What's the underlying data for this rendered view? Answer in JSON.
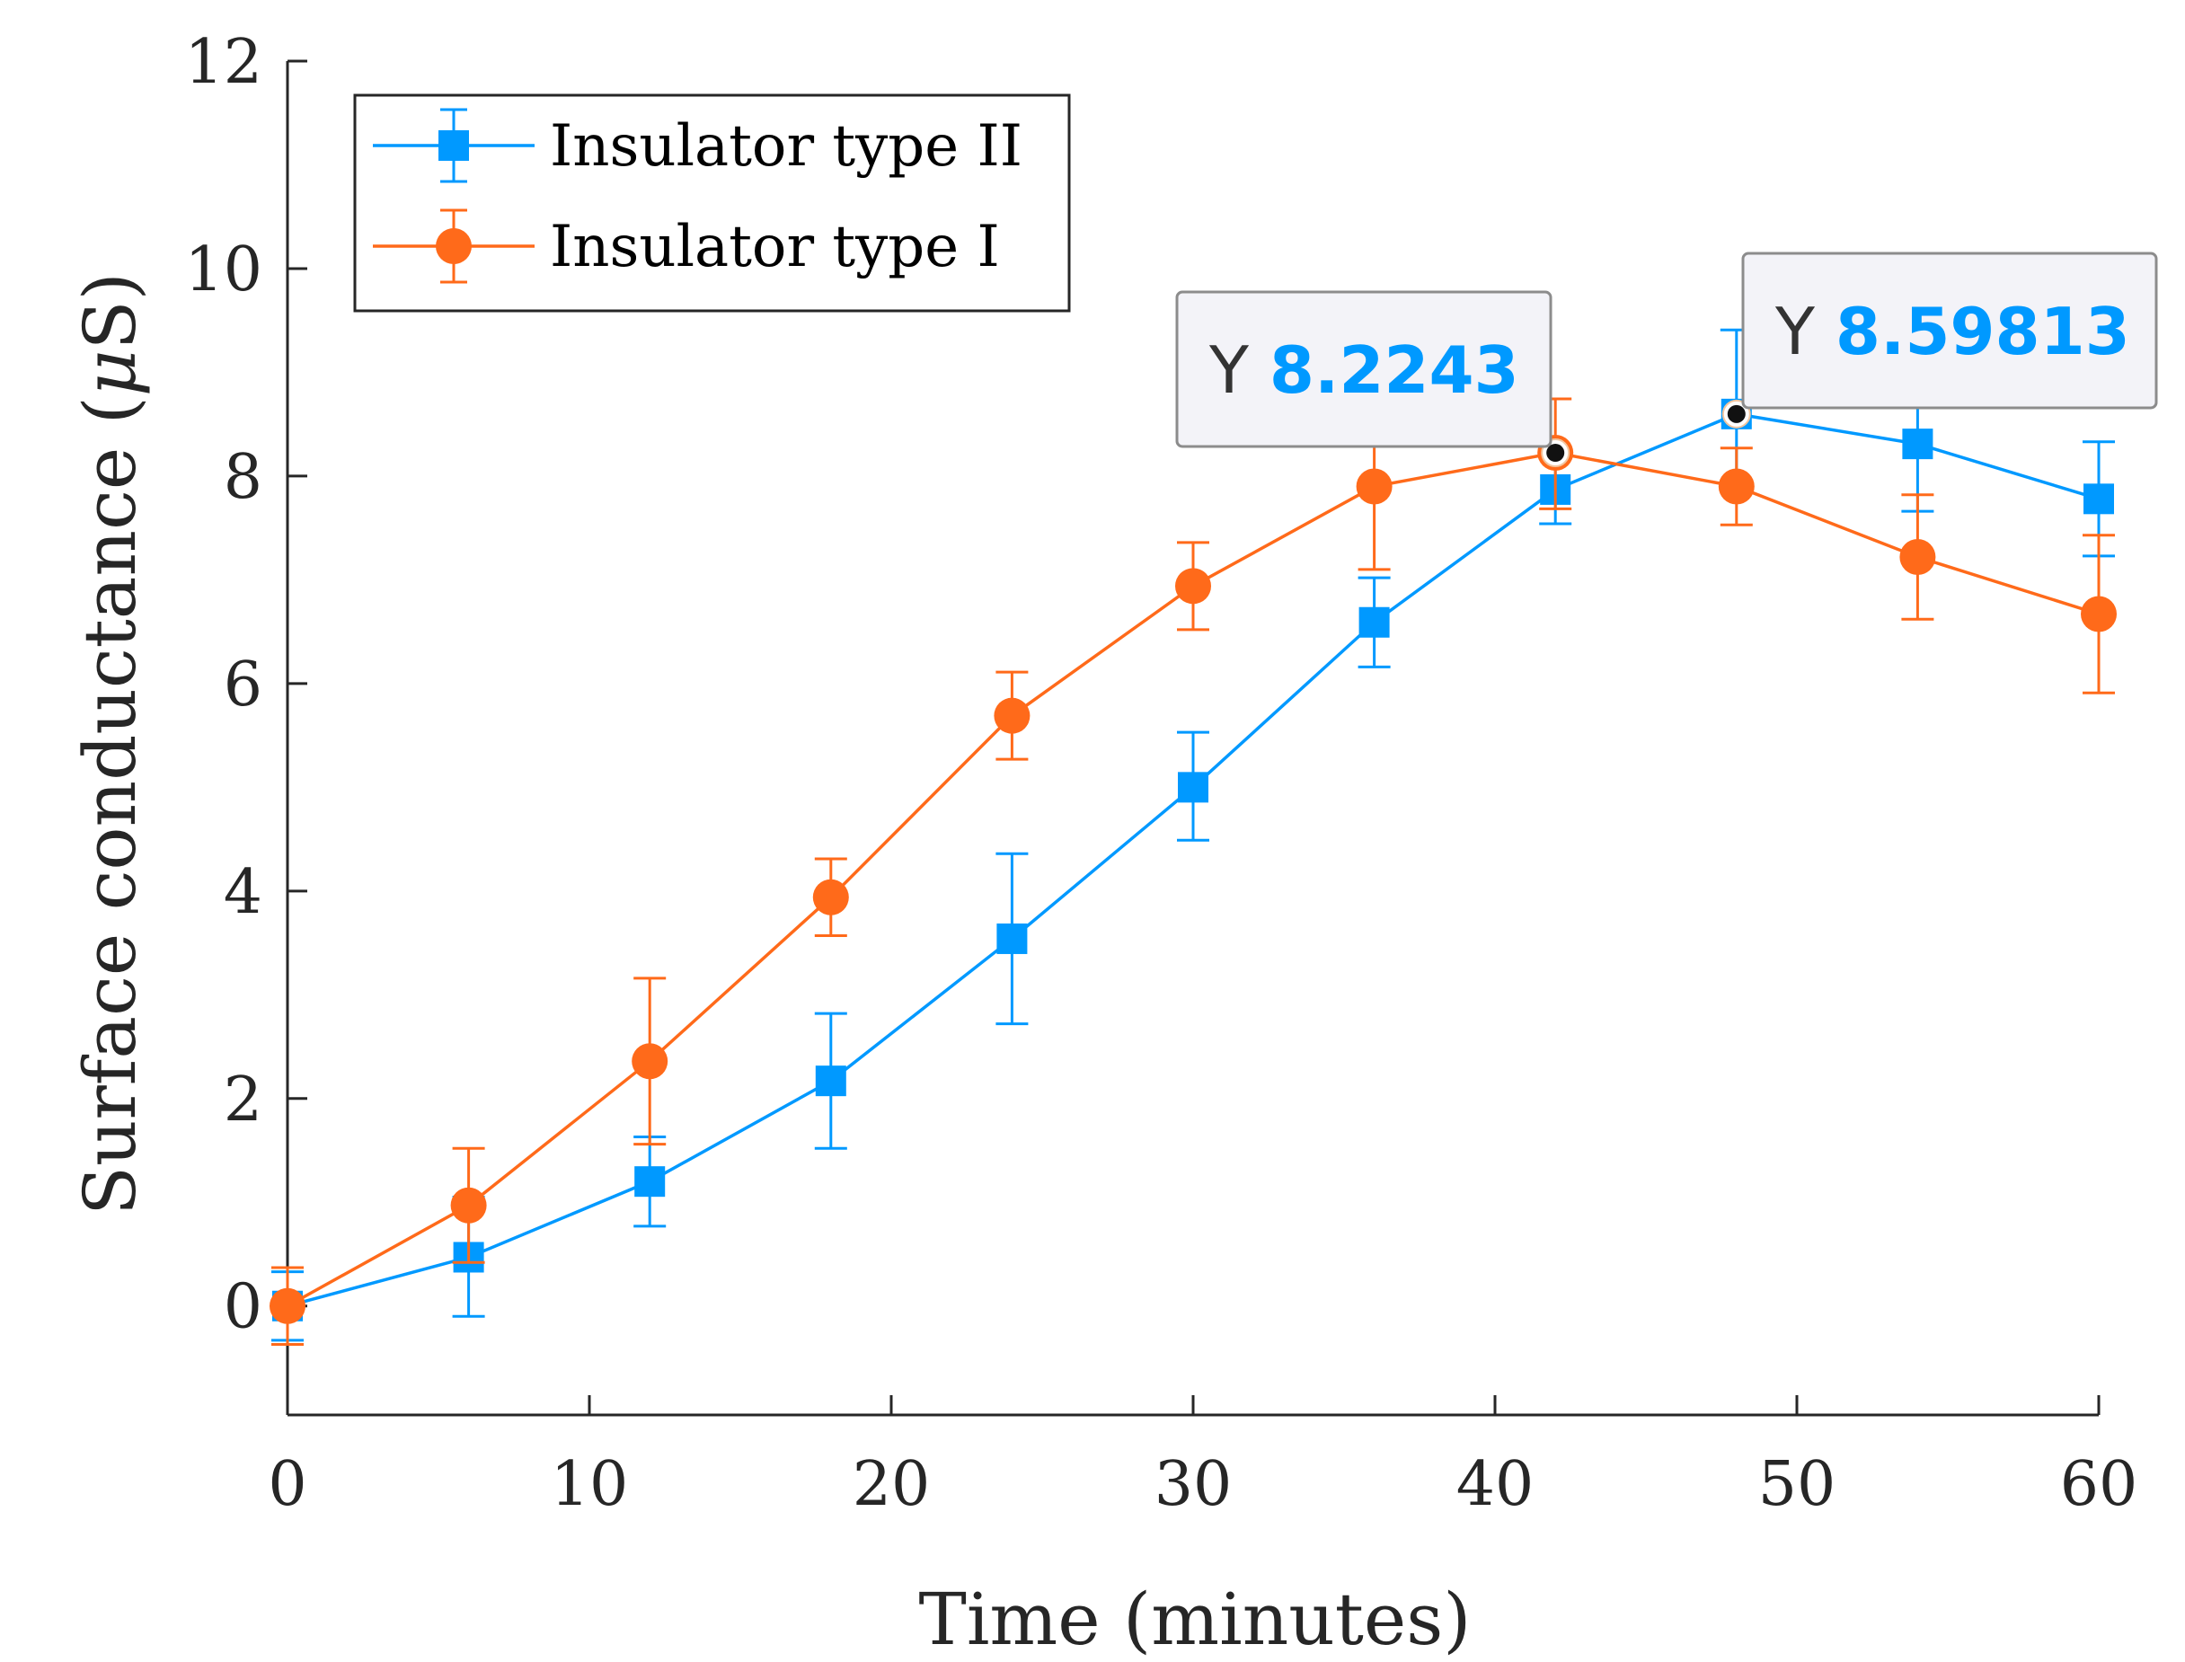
{
  "chart_data": {
    "type": "line",
    "title": "",
    "xlabel": "Time (minutes)",
    "ylabel_text": "Surface conductance (",
    "ylabel_symbol": "μ",
    "ylabel_unit": "S)",
    "xlim": [
      0,
      60
    ],
    "ylim": [
      -1.05,
      12
    ],
    "xticks": [
      0,
      10,
      20,
      30,
      40,
      50,
      60
    ],
    "yticks": [
      0,
      2,
      4,
      6,
      8,
      10,
      12
    ],
    "grid": false,
    "legend_position": "top-left",
    "x": [
      0,
      6,
      12,
      18,
      24,
      30,
      36,
      42,
      48,
      54,
      60
    ],
    "series": [
      {
        "name": "Insulator type II",
        "color": "#0099ff",
        "marker": "square",
        "values": [
          0.0,
          0.47,
          1.2,
          2.17,
          3.54,
          5.0,
          6.59,
          7.87,
          8.59813,
          8.31,
          7.78
        ],
        "err_low": [
          0.33,
          0.57,
          0.43,
          0.65,
          0.82,
          0.51,
          0.43,
          0.33,
          0.66,
          0.65,
          0.55
        ],
        "err_high": [
          0.33,
          0.58,
          0.43,
          0.65,
          0.82,
          0.53,
          0.43,
          0.33,
          0.81,
          0.65,
          0.55
        ]
      },
      {
        "name": "Insulator type I",
        "color": "#ff6a1a",
        "marker": "circle",
        "values": [
          0.0,
          0.97,
          2.36,
          3.94,
          5.69,
          6.94,
          7.9,
          8.2243,
          7.9,
          7.22,
          6.67
        ],
        "err_low": [
          0.37,
          0.55,
          0.8,
          0.37,
          0.42,
          0.42,
          0.8,
          0.54,
          0.37,
          0.6,
          0.76
        ],
        "err_high": [
          0.37,
          0.55,
          0.8,
          0.37,
          0.42,
          0.42,
          0.8,
          0.52,
          0.37,
          0.6,
          0.76
        ]
      }
    ],
    "annotations": [
      {
        "series": 1,
        "index": 7,
        "prefix": "Y",
        "value": "8.2243",
        "color": "#0099ff"
      },
      {
        "series": 0,
        "index": 8,
        "prefix": "Y",
        "value": "8.59813",
        "color": "#0099ff"
      }
    ]
  }
}
